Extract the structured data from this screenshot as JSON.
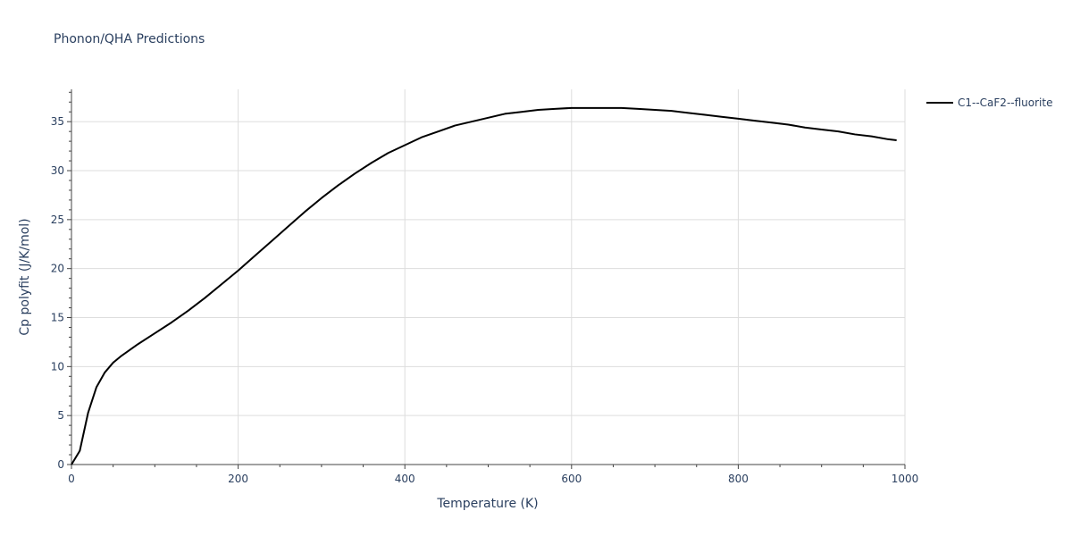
{
  "chart_data": {
    "type": "line",
    "title": "Phonon/QHA Predictions",
    "xlabel": "Temperature (K)",
    "ylabel": "Cp polyfit (J/K/mol)",
    "xlim": [
      0,
      1000
    ],
    "ylim": [
      0,
      38.3
    ],
    "xticks": [
      0,
      200,
      400,
      600,
      800,
      1000
    ],
    "yticks": [
      0,
      5,
      10,
      15,
      20,
      25,
      30,
      35
    ],
    "grid": true,
    "legend_position": "top-right",
    "series": [
      {
        "name": "C1--CaF2--fluorite",
        "color": "#000000",
        "x": [
          0,
          10,
          20,
          30,
          40,
          50,
          60,
          80,
          100,
          120,
          140,
          160,
          180,
          200,
          220,
          240,
          260,
          280,
          300,
          320,
          340,
          360,
          380,
          400,
          420,
          440,
          460,
          480,
          500,
          520,
          540,
          560,
          580,
          600,
          620,
          640,
          660,
          680,
          700,
          720,
          740,
          760,
          780,
          800,
          820,
          840,
          860,
          880,
          900,
          920,
          940,
          960,
          980,
          990
        ],
        "y": [
          0,
          1.4,
          5.3,
          7.9,
          9.4,
          10.4,
          11.1,
          12.3,
          13.4,
          14.5,
          15.7,
          17.0,
          18.4,
          19.8,
          21.3,
          22.8,
          24.3,
          25.8,
          27.2,
          28.5,
          29.7,
          30.8,
          31.8,
          32.6,
          33.4,
          34.0,
          34.6,
          35.0,
          35.4,
          35.8,
          36.0,
          36.2,
          36.3,
          36.4,
          36.4,
          36.4,
          36.4,
          36.3,
          36.2,
          36.1,
          35.9,
          35.7,
          35.5,
          35.3,
          35.1,
          34.9,
          34.7,
          34.4,
          34.2,
          34.0,
          33.7,
          33.5,
          33.2,
          33.1
        ]
      }
    ]
  }
}
